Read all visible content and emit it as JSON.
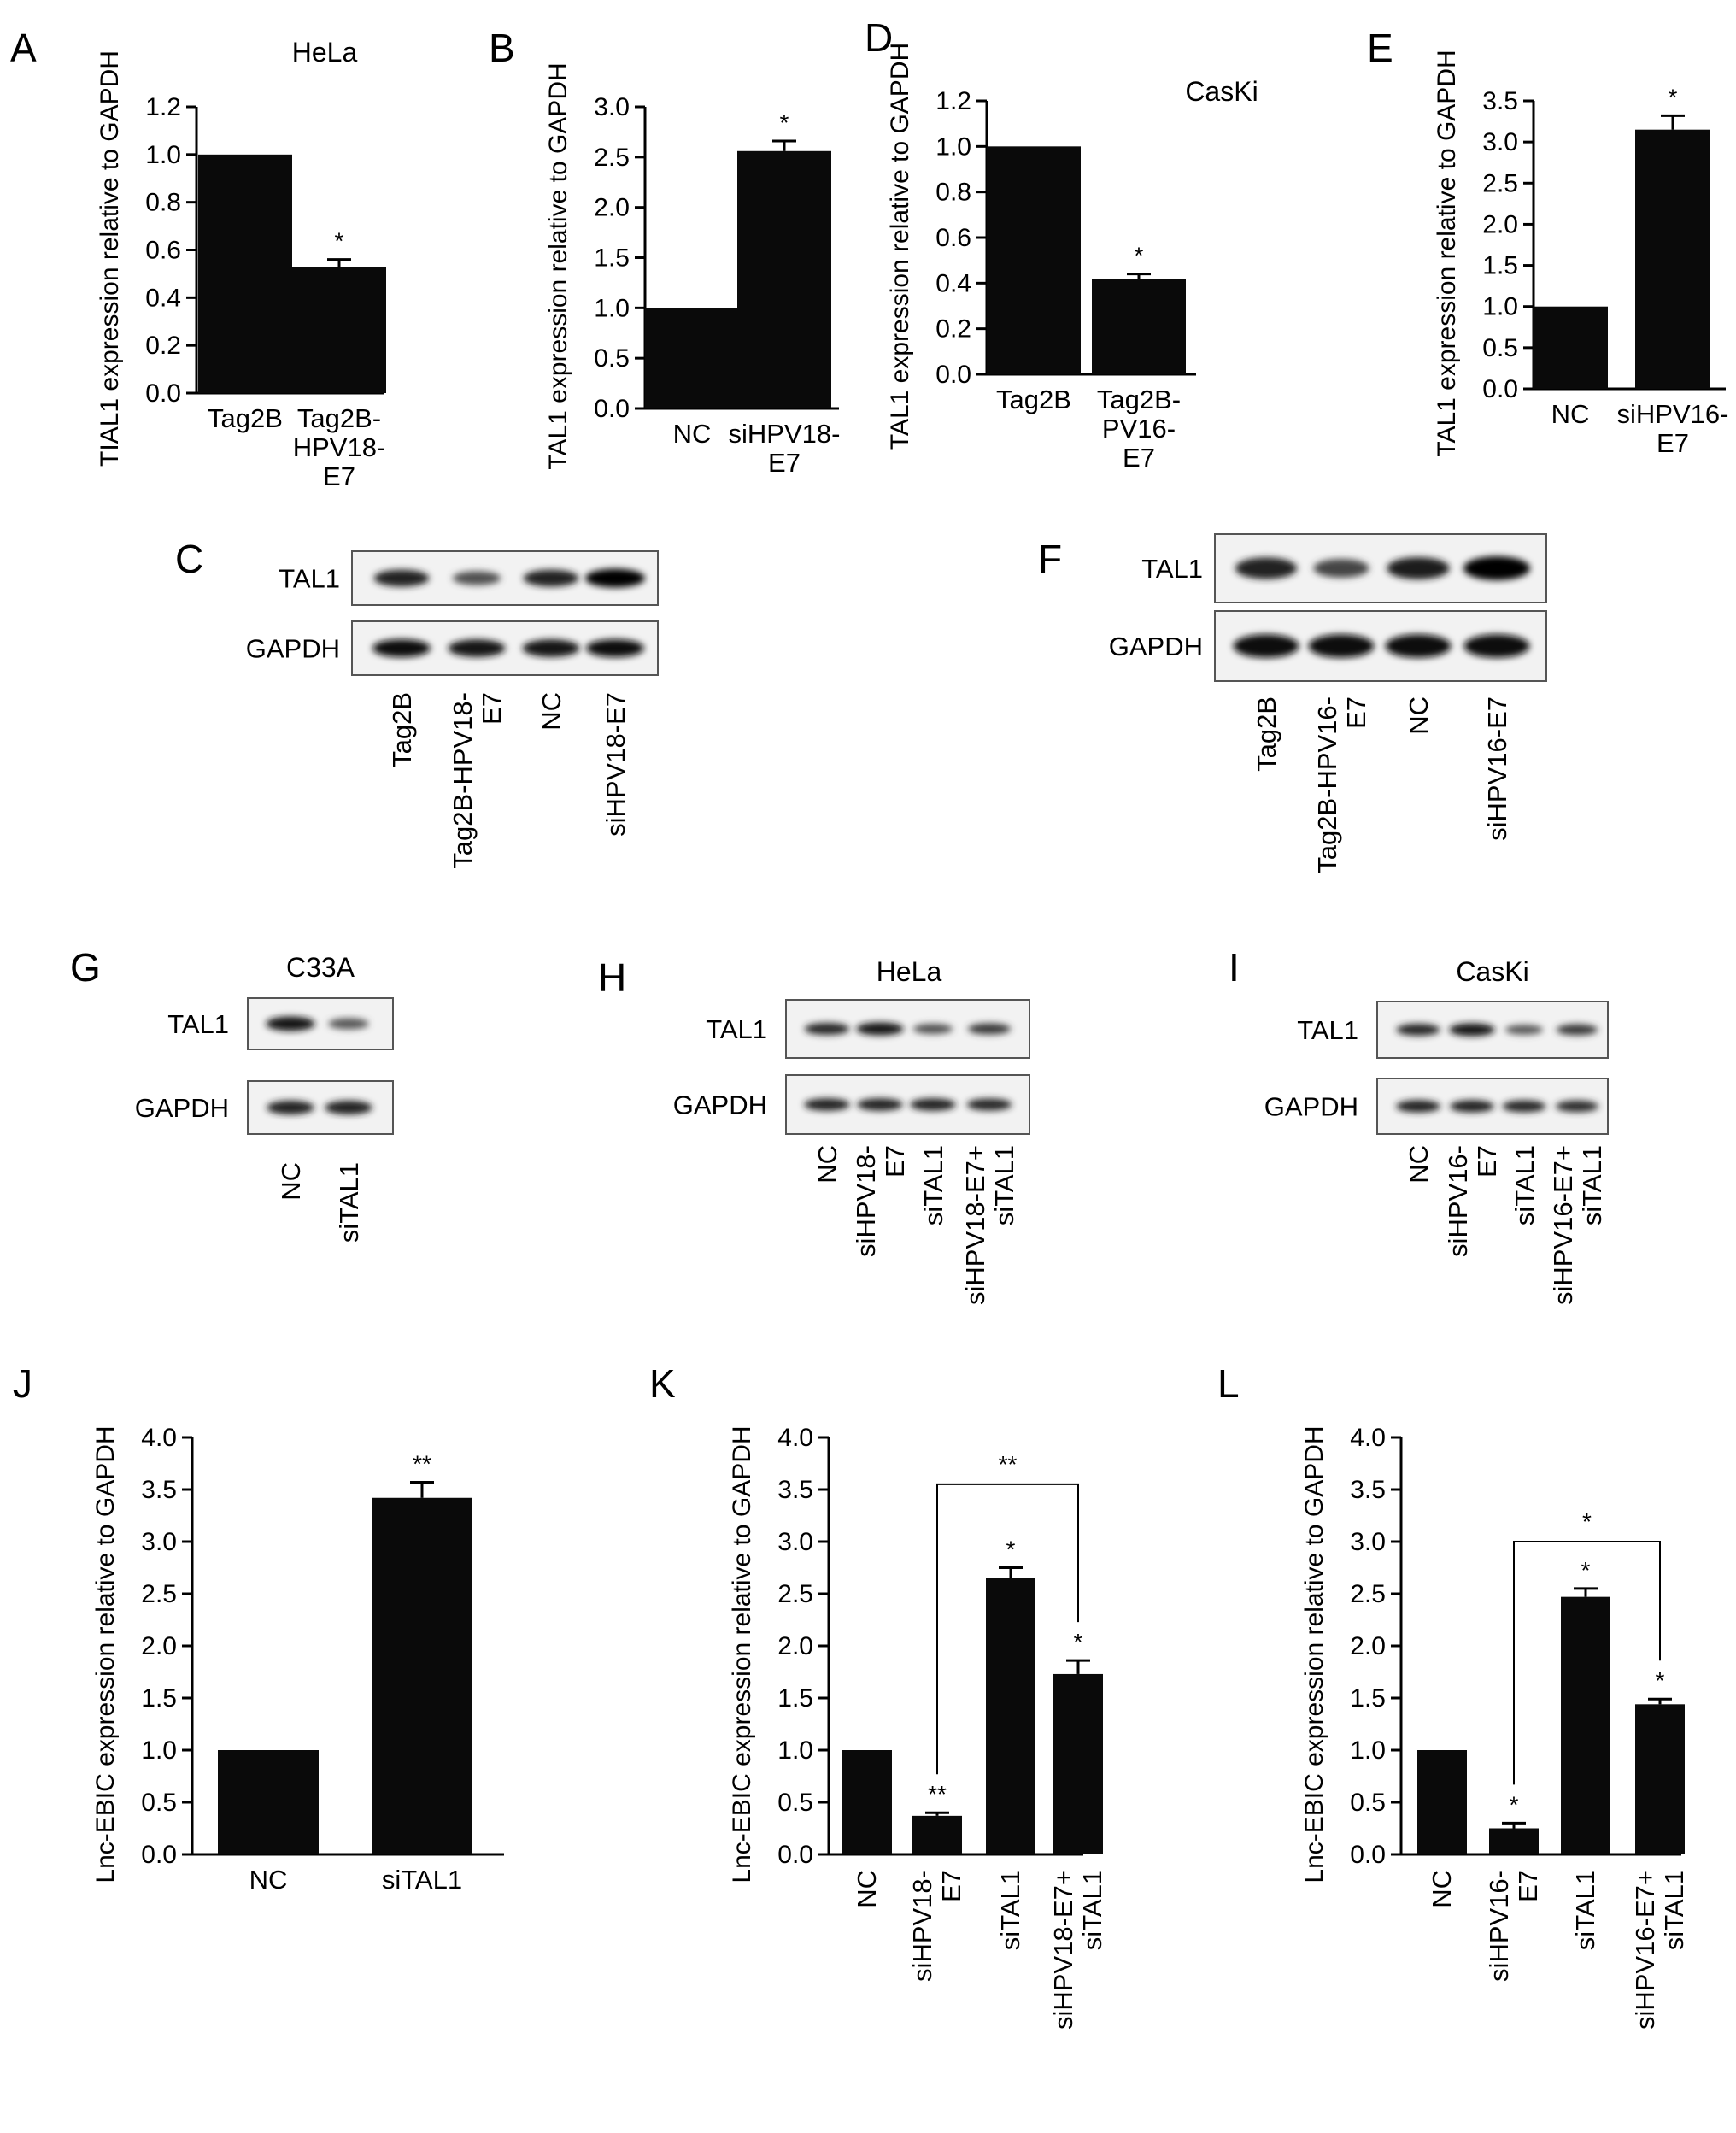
{
  "chart_data": [
    {
      "id": "A",
      "panel": "A",
      "type": "bar",
      "title": "HeLa",
      "ylabel": "TIAL1 expression relative to GAPDH",
      "ylim": [
        0,
        1.2
      ],
      "yticks": [
        "0.0",
        "0.2",
        "0.4",
        "0.6",
        "0.8",
        "1.0",
        "1.2"
      ],
      "categories": [
        [
          "Tag2B"
        ],
        [
          "Tag2B-",
          "HPV18-",
          "E7"
        ]
      ],
      "values": [
        1.0,
        0.53
      ],
      "errors": [
        0,
        0.03
      ],
      "sig": [
        "",
        "*"
      ],
      "brackets": []
    },
    {
      "id": "B",
      "panel": "B",
      "type": "bar",
      "title": "",
      "ylabel": "TAL1 expression relative to GAPDH",
      "ylim": [
        0,
        3.0
      ],
      "yticks": [
        "0.0",
        "0.5",
        "1.0",
        "1.5",
        "2.0",
        "2.5",
        "3.0"
      ],
      "categories": [
        [
          "NC"
        ],
        [
          "siHPV18-",
          "E7"
        ]
      ],
      "values": [
        1.0,
        2.56
      ],
      "errors": [
        0,
        0.1
      ],
      "sig": [
        "",
        "*"
      ],
      "brackets": []
    },
    {
      "id": "D",
      "panel": "D",
      "type": "bar",
      "title": "CasKi",
      "ylabel": "TAL1 expression relative to GAPDH",
      "ylim": [
        0,
        1.2
      ],
      "yticks": [
        "0.0",
        "0.2",
        "0.4",
        "0.6",
        "0.8",
        "1.0",
        "1.2"
      ],
      "categories": [
        [
          "Tag2B"
        ],
        [
          "Tag2B-",
          "PV16-",
          "E7"
        ]
      ],
      "values": [
        1.0,
        0.42
      ],
      "errors": [
        0,
        0.02
      ],
      "sig": [
        "",
        "*"
      ],
      "brackets": []
    },
    {
      "id": "E",
      "panel": "E",
      "type": "bar",
      "title": "",
      "ylabel": "TAL1 expression relative to GAPDH",
      "ylim": [
        0,
        3.5
      ],
      "yticks": [
        "0.0",
        "0.5",
        "1.0",
        "1.5",
        "2.0",
        "2.5",
        "3.0",
        "3.5"
      ],
      "categories": [
        [
          "NC"
        ],
        [
          "siHPV16-",
          "E7"
        ]
      ],
      "values": [
        1.0,
        3.15
      ],
      "errors": [
        0,
        0.17
      ],
      "sig": [
        "",
        "*"
      ],
      "brackets": []
    },
    {
      "id": "J",
      "panel": "J",
      "type": "bar",
      "title": "",
      "ylabel": "Lnc-EBIC expression relative to GAPDH",
      "ylim": [
        0,
        4.0
      ],
      "yticks": [
        "0.0",
        "0.5",
        "1.0",
        "1.5",
        "2.0",
        "2.5",
        "3.0",
        "3.5",
        "4.0"
      ],
      "categories": [
        [
          "NC"
        ],
        [
          "siTAL1"
        ]
      ],
      "values": [
        1.0,
        3.42
      ],
      "errors": [
        0,
        0.15
      ],
      "sig": [
        "",
        "**"
      ],
      "brackets": []
    },
    {
      "id": "K",
      "panel": "K",
      "type": "bar",
      "title": "",
      "ylabel": "Lnc-EBIC expression relative to GAPDH",
      "ylim": [
        0,
        4.0
      ],
      "yticks": [
        "0.0",
        "0.5",
        "1.0",
        "1.5",
        "2.0",
        "2.5",
        "3.0",
        "3.5",
        "4.0"
      ],
      "categories": [
        [
          "NC"
        ],
        [
          "siHPV18-",
          "E7"
        ],
        [
          "siTAL1"
        ],
        [
          "siHPV18-E7+",
          "siTAL1"
        ]
      ],
      "values": [
        1.0,
        0.37,
        2.65,
        1.73
      ],
      "errors": [
        0,
        0.03,
        0.1,
        0.13
      ],
      "sig": [
        "",
        "**",
        "*",
        "*"
      ],
      "brackets": [
        {
          "from": 1,
          "to": 3,
          "level": 3.55,
          "label": "**"
        }
      ]
    },
    {
      "id": "L",
      "panel": "L",
      "type": "bar",
      "title": "",
      "ylabel": "Lnc-EBIC expression relative to GAPDH",
      "ylim": [
        0,
        4.0
      ],
      "yticks": [
        "0.0",
        "0.5",
        "1.0",
        "1.5",
        "2.0",
        "2.5",
        "3.0",
        "3.5",
        "4.0"
      ],
      "categories": [
        [
          "NC"
        ],
        [
          "siHPV16-",
          "E7"
        ],
        [
          "siTAL1"
        ],
        [
          "siHPV16-E7+",
          "siTAL1"
        ]
      ],
      "values": [
        1.0,
        0.25,
        2.47,
        1.44
      ],
      "errors": [
        0,
        0.05,
        0.08,
        0.05
      ],
      "sig": [
        "",
        "*",
        "*",
        "*"
      ],
      "brackets": [
        {
          "from": 1,
          "to": 3,
          "level": 3.0,
          "label": "*"
        }
      ]
    }
  ],
  "blots": [
    {
      "id": "C",
      "panel": "C",
      "title": "",
      "rows": [
        {
          "label": "TAL1",
          "bands": [
            0.75,
            0.35,
            0.75,
            1.0
          ]
        },
        {
          "label": "GAPDH",
          "bands": [
            0.9,
            0.85,
            0.85,
            0.9
          ]
        }
      ],
      "lanes": [
        [
          "Tag2B"
        ],
        [
          "Tag2B-HPV18-",
          "E7"
        ],
        [
          "NC"
        ],
        [
          "siHPV18-E7"
        ]
      ]
    },
    {
      "id": "F",
      "panel": "F",
      "title": "",
      "rows": [
        {
          "label": "TAL1",
          "bands": [
            0.75,
            0.45,
            0.8,
            1.0
          ]
        },
        {
          "label": "GAPDH",
          "bands": [
            0.95,
            0.95,
            0.95,
            0.95
          ]
        }
      ],
      "lanes": [
        [
          "Tag2B"
        ],
        [
          "Tag2B-HPV16-",
          "E7"
        ],
        [
          "NC"
        ],
        [
          "siHPV16-E7"
        ]
      ]
    },
    {
      "id": "G",
      "panel": "G",
      "title": "C33A",
      "rows": [
        {
          "label": "TAL1",
          "bands": [
            0.85,
            0.3
          ]
        },
        {
          "label": "GAPDH",
          "bands": [
            0.75,
            0.75
          ]
        }
      ],
      "lanes": [
        [
          "NC"
        ],
        [
          "siTAL1"
        ]
      ]
    },
    {
      "id": "H",
      "panel": "H",
      "title": "HeLa",
      "rows": [
        {
          "label": "TAL1",
          "bands": [
            0.7,
            0.85,
            0.35,
            0.55
          ]
        },
        {
          "label": "GAPDH",
          "bands": [
            0.75,
            0.75,
            0.75,
            0.7
          ]
        }
      ],
      "lanes": [
        [
          "NC"
        ],
        [
          "siHPV18-",
          "E7"
        ],
        [
          "siTAL1"
        ],
        [
          "siHPV18-E7+",
          "siTAL1"
        ]
      ]
    },
    {
      "id": "I",
      "panel": "I",
      "title": "CasKi",
      "rows": [
        {
          "label": "TAL1",
          "bands": [
            0.7,
            0.85,
            0.3,
            0.55
          ]
        },
        {
          "label": "GAPDH",
          "bands": [
            0.75,
            0.75,
            0.7,
            0.65
          ]
        }
      ],
      "lanes": [
        [
          "NC"
        ],
        [
          "siHPV16-",
          "E7"
        ],
        [
          "siTAL1"
        ],
        [
          "siHPV16-E7+",
          "siTAL1"
        ]
      ]
    }
  ]
}
